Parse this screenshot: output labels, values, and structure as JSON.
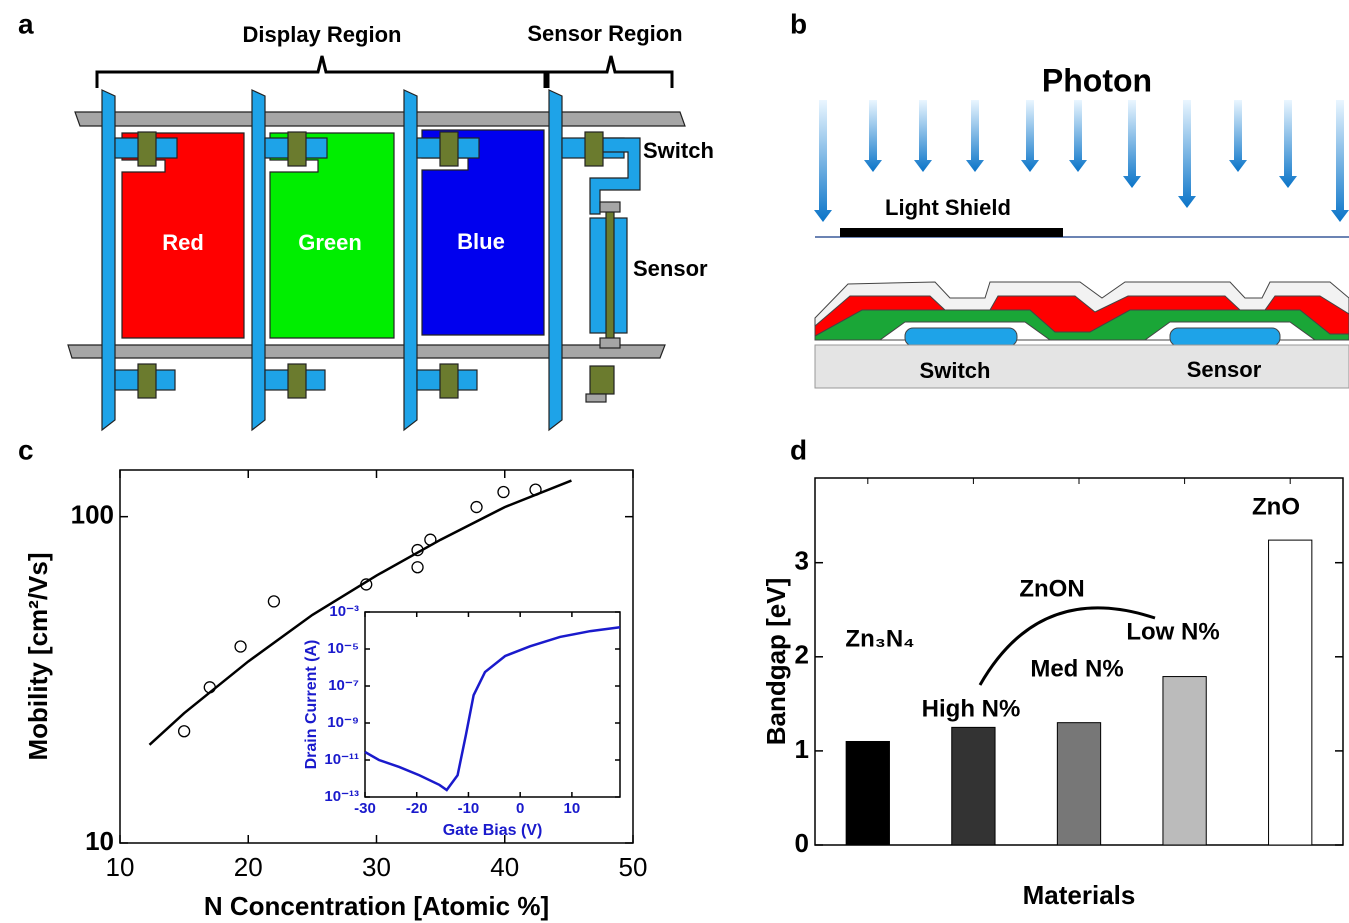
{
  "panels": [
    "a",
    "b",
    "c",
    "d"
  ],
  "diagram_a": {
    "regions": [
      "Display Region",
      "Sensor Region"
    ],
    "pixels": [
      "Red",
      "Green",
      "Blue"
    ],
    "switch": "Switch",
    "sensor": "Sensor"
  },
  "diagram_b": {
    "photon": "Photon",
    "light_shield": "Light Shield",
    "devices": [
      "Switch",
      "Sensor"
    ]
  },
  "chart_data": [
    {
      "type": "scatter",
      "xlabel": "N Concentration [Atomic %]",
      "ylabel": "Mobility [cm²/Vs]",
      "xlim": [
        10,
        50
      ],
      "xticks": [
        10,
        20,
        30,
        40,
        50
      ],
      "ylim": [
        10,
        139
      ],
      "yticks": [
        10,
        100
      ],
      "log_y": true,
      "series": [
        {
          "marker": "circle",
          "color": "#000000",
          "x": [
            15,
            17,
            19.4,
            22,
            29.2,
            33.2,
            33.2,
            34.2,
            37.8,
            39.9,
            42.4
          ],
          "values": [
            22,
            30,
            40,
            55,
            62,
            79,
            70,
            85,
            107,
            119,
            121
          ]
        },
        {
          "marker": "line",
          "color": "#000000",
          "x": [
            12.3,
            15,
            20,
            25,
            30,
            35,
            40,
            45.2
          ],
          "values": [
            20,
            25,
            36,
            50,
            66,
            85,
            107,
            129
          ]
        }
      ]
    },
    {
      "type": "line",
      "xlabel": "Gate Bias (V)",
      "ylabel": "Drain Current (A)",
      "text_color": "#1a1acc",
      "xlim": [
        -30,
        19.3
      ],
      "xticks": [
        -30,
        -20,
        -10,
        0,
        10
      ],
      "ylim": [
        1e-13,
        0.001
      ],
      "log_y": true,
      "yticks": [
        {
          "value": 1e-13,
          "label": "10⁻¹³"
        },
        {
          "value": 1e-11,
          "label": "10⁻¹¹"
        },
        {
          "value": 1e-09,
          "label": "10⁻⁹"
        },
        {
          "value": 1e-07,
          "label": "10⁻⁷"
        },
        {
          "value": 1e-05,
          "label": "10⁻⁵"
        },
        {
          "value": 0.001,
          "label": "10⁻³"
        }
      ],
      "series": [
        {
          "marker": "line",
          "color": "#1a1acc",
          "x": [
            -30,
            -27.3,
            -23.4,
            -19.5,
            -15.6,
            -14.2,
            -12.1,
            -10.5,
            -9.0,
            -6.8,
            -2.9,
            1.9,
            7.7,
            13.6,
            19.3
          ],
          "values": [
            2.7e-11,
            1e-11,
            4.2e-12,
            1.5e-12,
            4.5e-13,
            2.4e-13,
            1.5e-12,
            2.2e-10,
            3.2e-08,
            5.7e-07,
            4.2e-06,
            1.4e-05,
            4.5e-05,
            9.3e-05,
            0.00015
          ]
        }
      ]
    },
    {
      "type": "bar",
      "xlabel": "Materials",
      "ylabel": "Bandgap [eV]",
      "categories": [
        null,
        null,
        null,
        null,
        null
      ],
      "values": [
        1.1,
        1.25,
        1.3,
        1.79,
        3.24
      ],
      "colors": [
        "#000000",
        "#333333",
        "#777777",
        "#bbbbbb",
        "#ffffff"
      ],
      "ylim": [
        0,
        3.9
      ],
      "yticks": [
        0,
        1,
        2,
        3
      ],
      "annotations": [
        "Zn₃N₄",
        "High N%",
        "Med N%",
        "Low N%",
        "ZnON",
        "ZnO"
      ]
    }
  ]
}
